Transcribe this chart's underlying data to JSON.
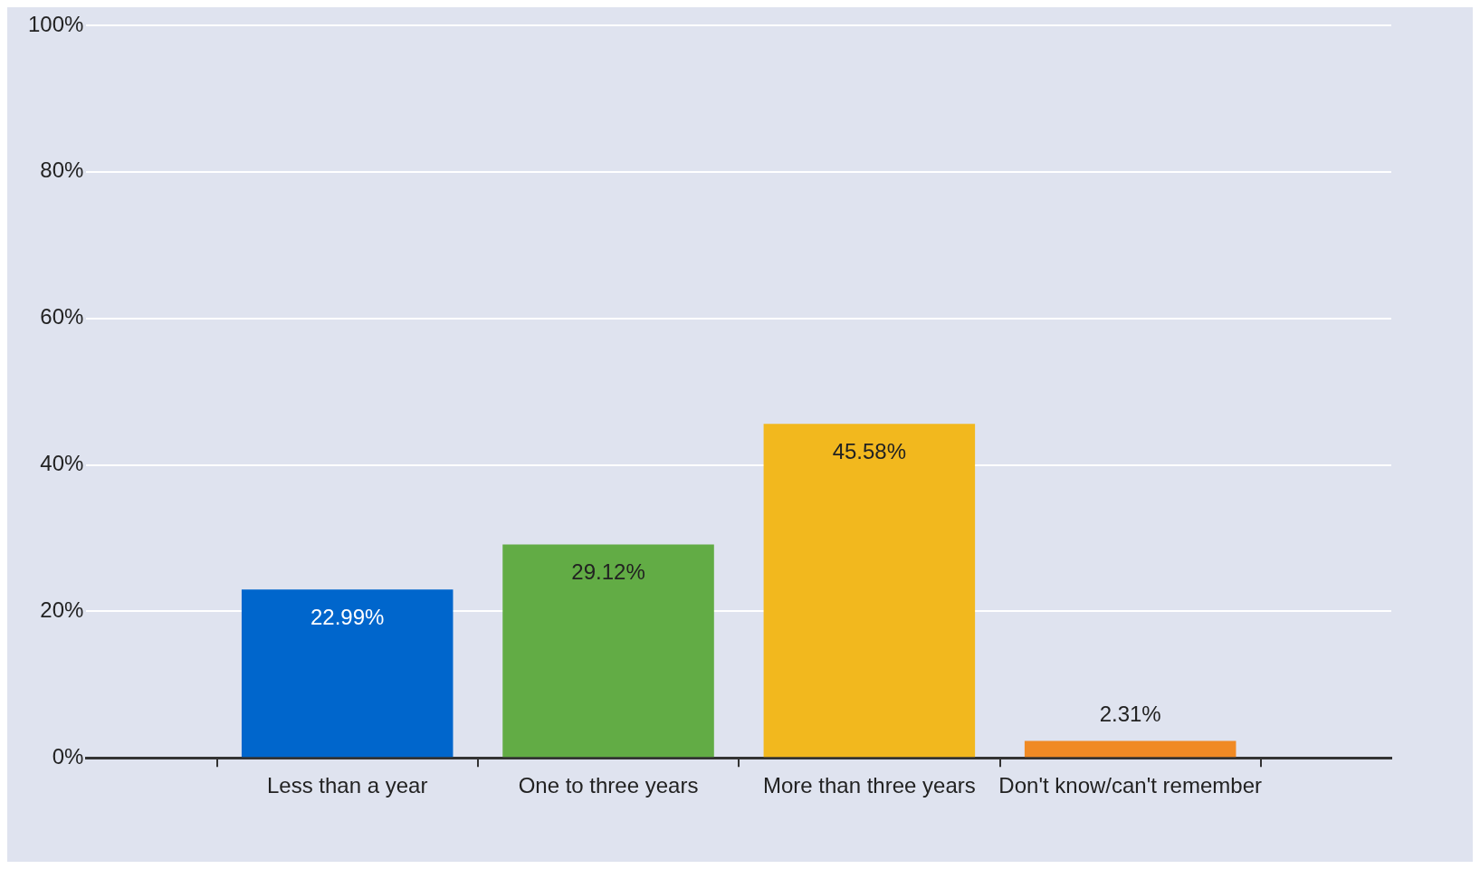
{
  "chart_data": {
    "type": "bar",
    "categories": [
      null,
      "Less than a year",
      "One to three years",
      "More than three years",
      "Don't know/can't remember",
      null
    ],
    "values": [
      null,
      22.99,
      29.12,
      45.58,
      2.31,
      null
    ],
    "colors": [
      "#0066cc",
      "#0066cc",
      "#62ac45",
      "#f2b81e",
      "#f08a24",
      "#f08a24"
    ],
    "ylim": [
      0,
      100
    ],
    "yticks": [
      {
        "value": 0,
        "label": "0%"
      },
      {
        "value": 20,
        "label": "20%"
      },
      {
        "value": 40,
        "label": "40%"
      },
      {
        "value": 60,
        "label": "60%"
      },
      {
        "value": 80,
        "label": "80%"
      },
      {
        "value": 100,
        "label": "100%"
      }
    ],
    "value_labels": [
      null,
      "22.99%",
      "29.12%",
      "45.58%",
      "2.31%",
      null
    ],
    "grid": "y",
    "legend": false
  }
}
